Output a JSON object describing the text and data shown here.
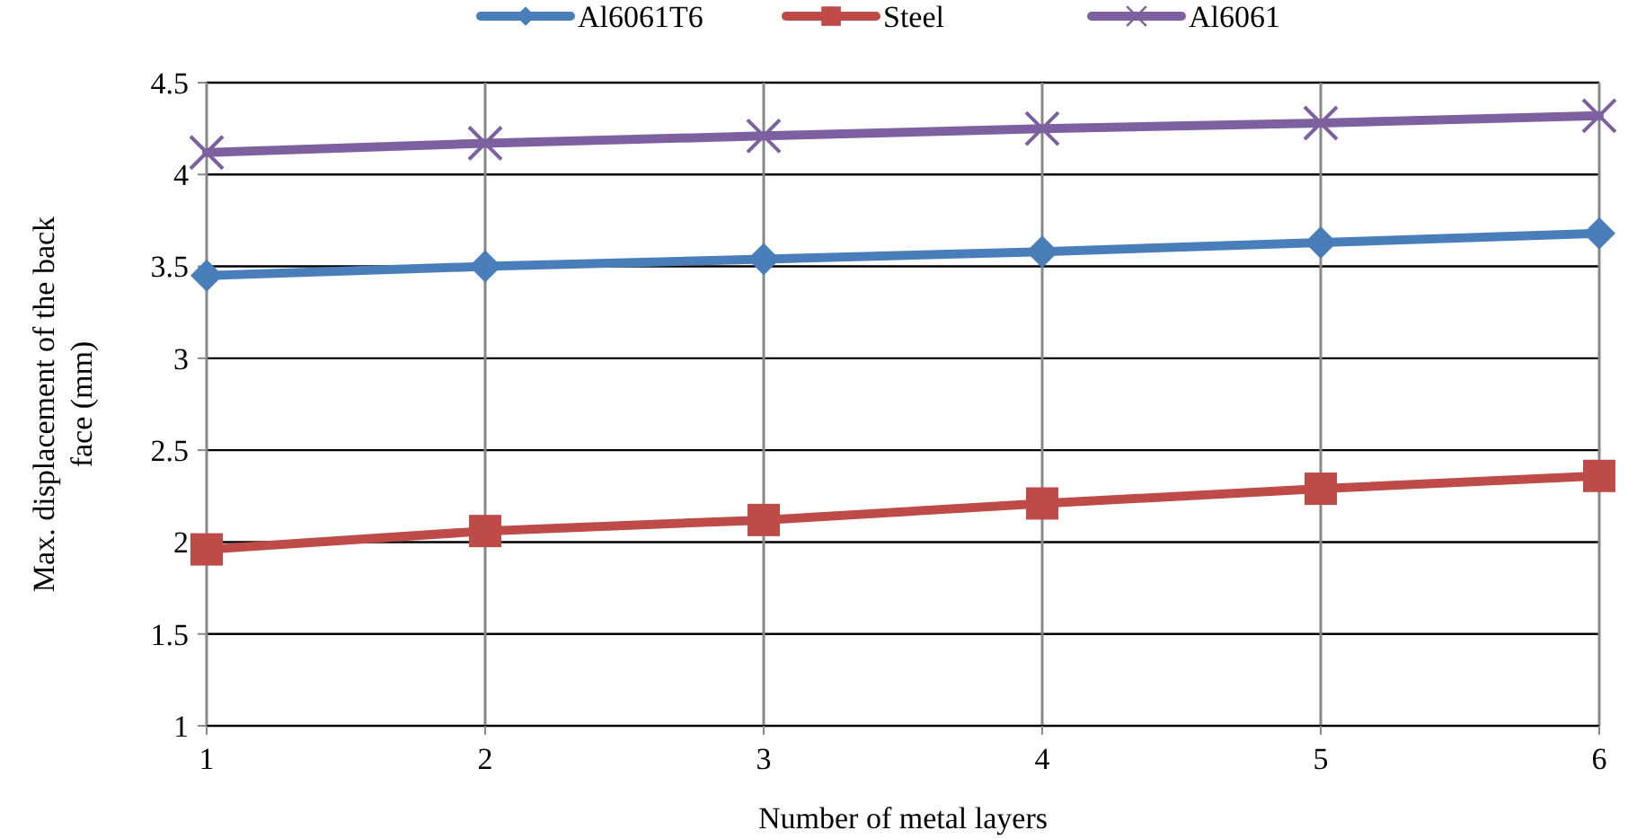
{
  "chart_data": {
    "type": "line",
    "xlabel": "Number of metal layers",
    "ylabel": "Max. displacement of the back face (mm)",
    "x": [
      1,
      2,
      3,
      4,
      5,
      6
    ],
    "series": [
      {
        "name": "Al6061T6",
        "color": "#4a7ebb",
        "marker": "diamond",
        "values": [
          3.45,
          3.5,
          3.54,
          3.58,
          3.63,
          3.68
        ]
      },
      {
        "name": "Steel",
        "color": "#be4b48",
        "marker": "square",
        "values": [
          1.96,
          2.06,
          2.12,
          2.21,
          2.29,
          2.36
        ]
      },
      {
        "name": "Al6061",
        "color": "#7d60a0",
        "marker": "cross",
        "values": [
          4.12,
          4.17,
          4.21,
          4.25,
          4.28,
          4.32
        ]
      }
    ],
    "xlim": [
      1,
      6
    ],
    "xticks": [
      1,
      2,
      3,
      4,
      5,
      6
    ],
    "ylim": [
      1,
      4.5
    ],
    "yticks": [
      1,
      1.5,
      2,
      2.5,
      3,
      3.5,
      4,
      4.5
    ],
    "grid": true,
    "legend": "top",
    "line_style": "solid"
  }
}
